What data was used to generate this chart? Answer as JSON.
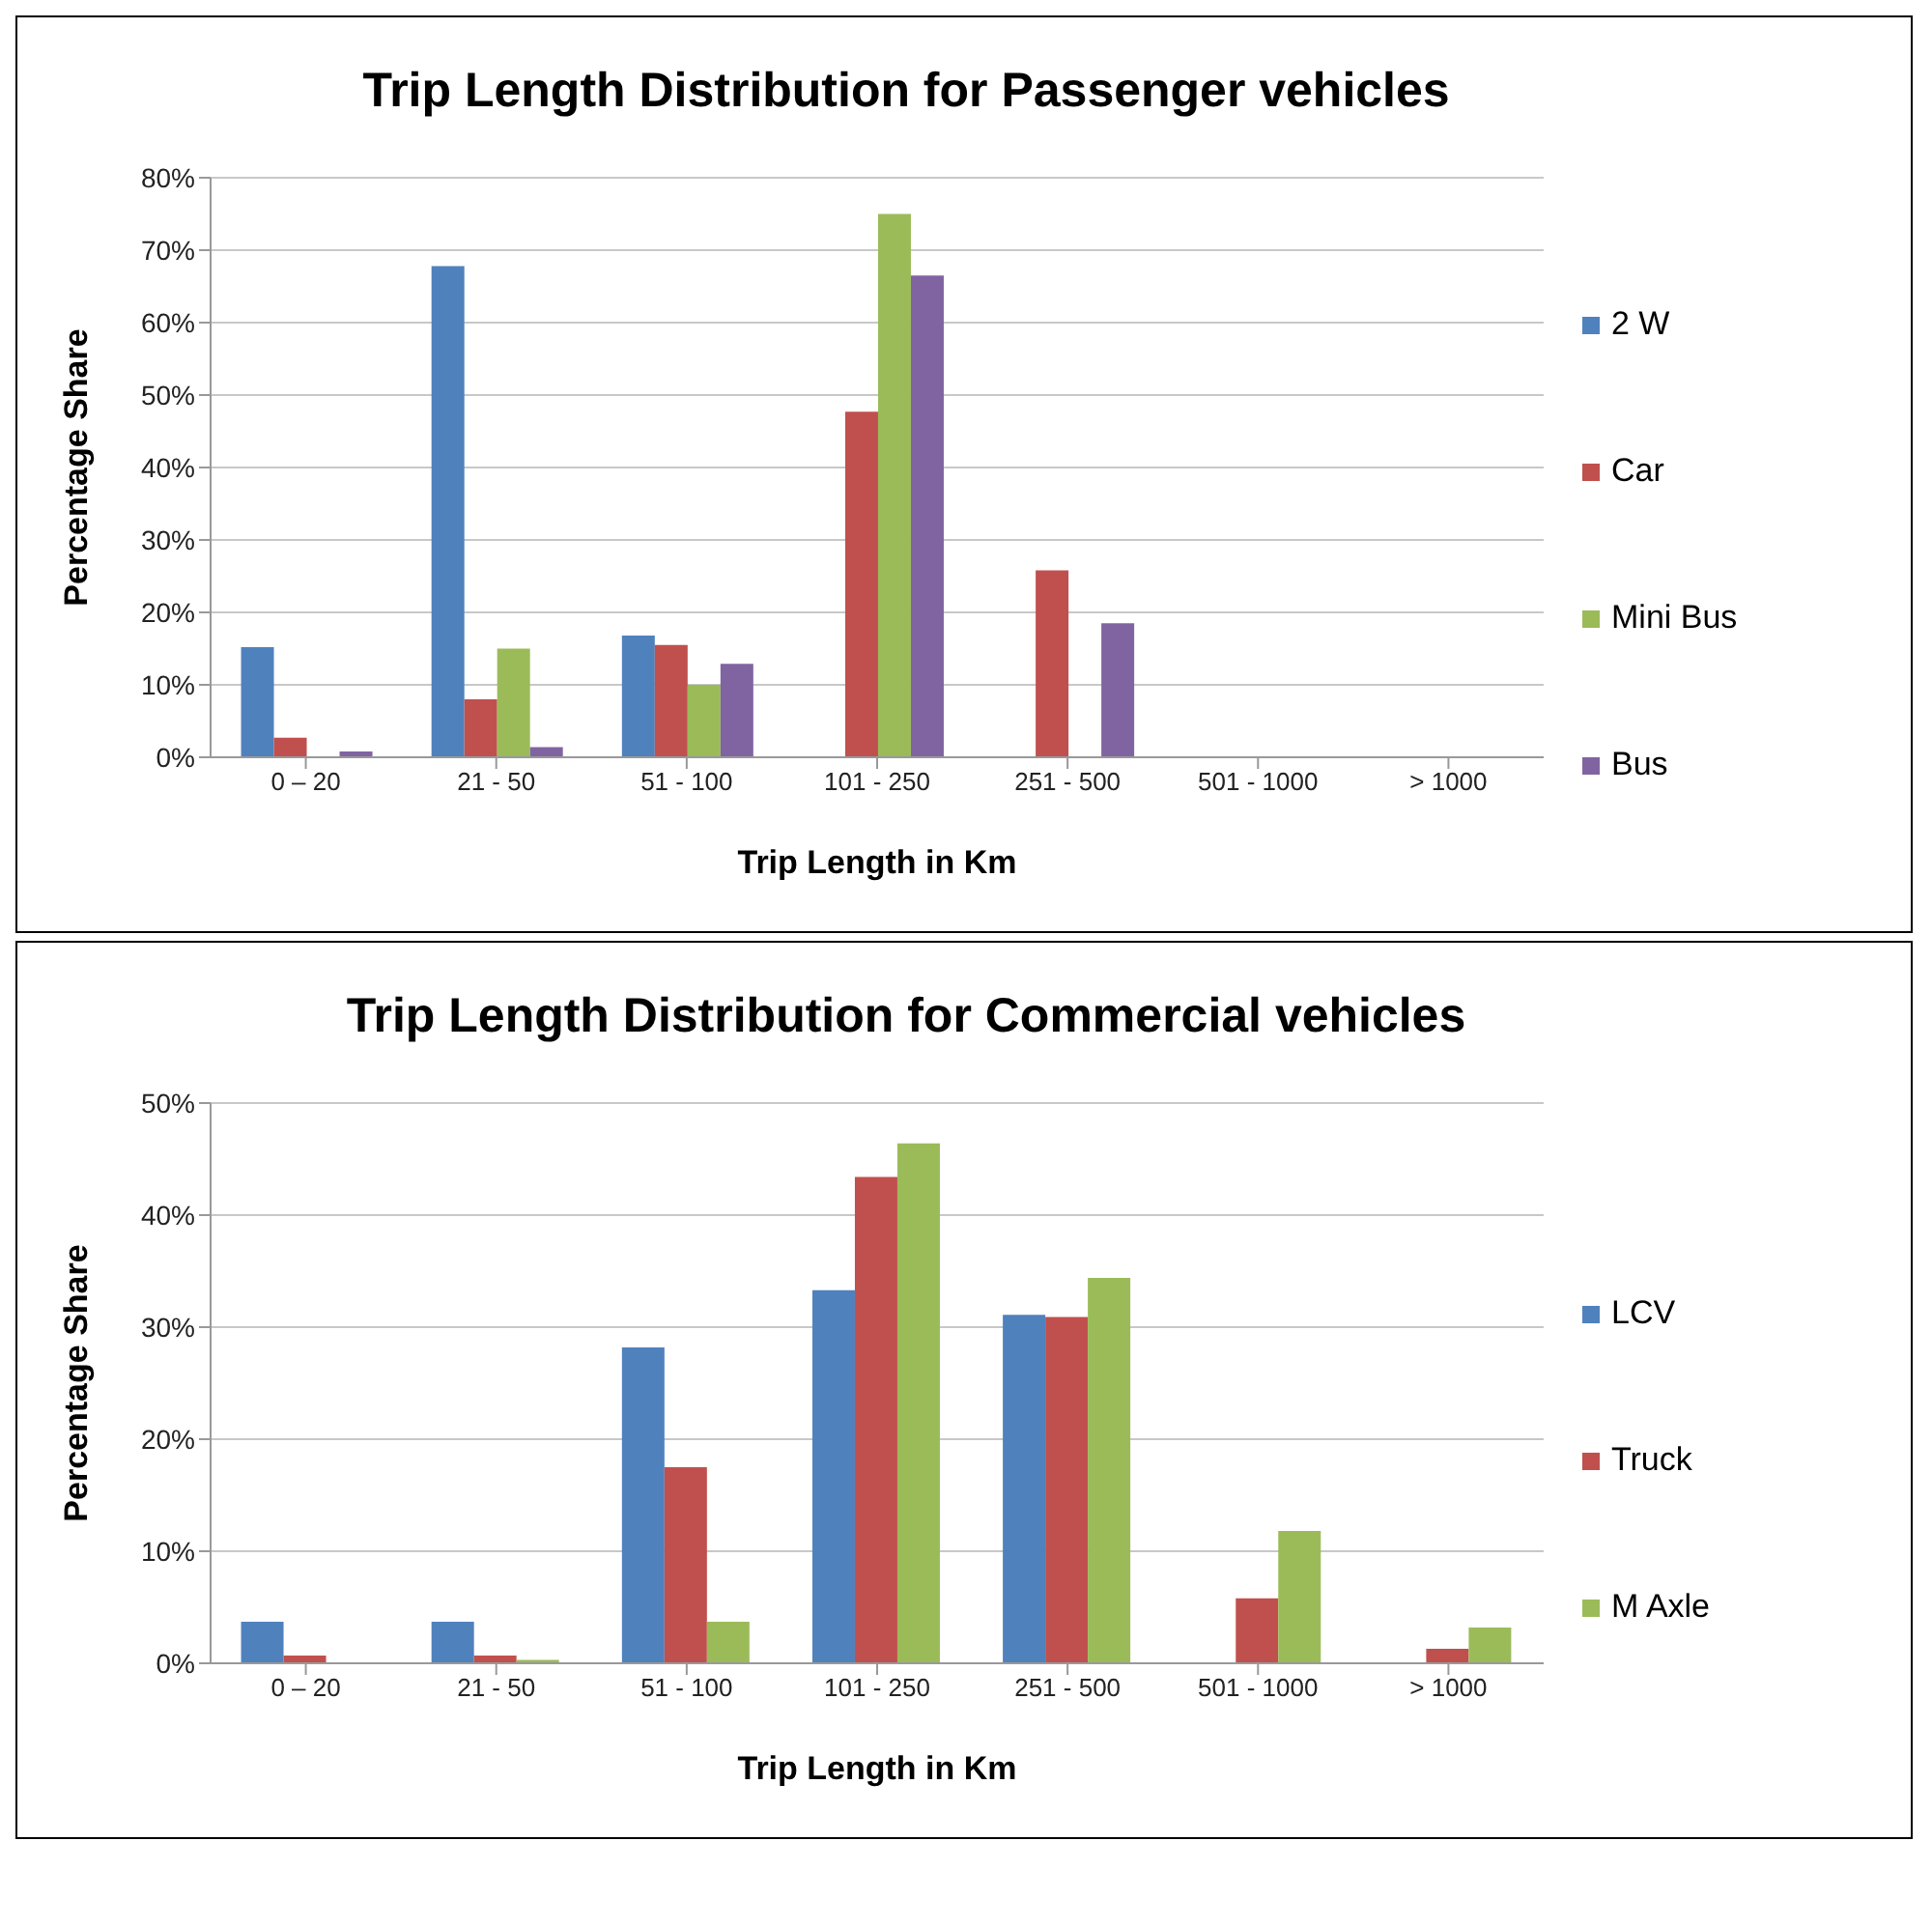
{
  "chart_data": [
    {
      "type": "bar",
      "title": "Trip Length Distribution for Passenger vehicles",
      "xlabel": "Trip Length in Km",
      "ylabel": "Percentage Share",
      "categories": [
        "0 – 20",
        "21 - 50",
        "51 - 100",
        "101 - 250",
        "251 - 500",
        "501 - 1000",
        "> 1000"
      ],
      "series": [
        {
          "name": "2 W",
          "color": "#4f81bd",
          "values": [
            15.2,
            67.8,
            16.8,
            0,
            0,
            0,
            0
          ]
        },
        {
          "name": "Car",
          "color": "#c0504d",
          "values": [
            2.7,
            8,
            15.5,
            47.7,
            25.8,
            0,
            0
          ]
        },
        {
          "name": "Mini Bus",
          "color": "#9bbb59",
          "values": [
            0,
            15,
            10,
            75,
            0,
            0,
            0
          ]
        },
        {
          "name": "Bus",
          "color": "#8064a2",
          "values": [
            0.8,
            1.4,
            12.9,
            66.5,
            18.5,
            0,
            0
          ]
        }
      ],
      "ylim": [
        0,
        80
      ],
      "yticks": [
        {
          "value": 0,
          "label": "0%"
        },
        {
          "value": 10,
          "label": "10%"
        },
        {
          "value": 20,
          "label": "20%"
        },
        {
          "value": 30,
          "label": "30%"
        },
        {
          "value": 40,
          "label": "40%"
        },
        {
          "value": 50,
          "label": "50%"
        },
        {
          "value": 60,
          "label": "60%"
        },
        {
          "value": 70,
          "label": "70%"
        },
        {
          "value": 80,
          "label": "80%"
        }
      ],
      "grid": "y",
      "legend": "right"
    },
    {
      "type": "bar",
      "title": "Trip Length Distribution for Commercial vehicles",
      "xlabel": "Trip Length in Km",
      "ylabel": "Percentage Share",
      "categories": [
        "0 – 20",
        "21 - 50",
        "51 - 100",
        "101 - 250",
        "251 - 500",
        "501 - 1000",
        "> 1000"
      ],
      "series": [
        {
          "name": "LCV",
          "color": "#4f81bd",
          "values": [
            3.7,
            3.7,
            28.2,
            33.3,
            31.1,
            0,
            0
          ]
        },
        {
          "name": "Truck",
          "color": "#c0504d",
          "values": [
            0.7,
            0.7,
            17.5,
            43.4,
            30.9,
            5.8,
            1.3
          ]
        },
        {
          "name": "M Axle",
          "color": "#9bbb59",
          "values": [
            0,
            0.3,
            3.7,
            46.4,
            34.4,
            11.8,
            3.2
          ]
        }
      ],
      "ylim": [
        0,
        50
      ],
      "yticks": [
        {
          "value": 0,
          "label": "0%"
        },
        {
          "value": 10,
          "label": "10%"
        },
        {
          "value": 20,
          "label": "20%"
        },
        {
          "value": 30,
          "label": "30%"
        },
        {
          "value": 40,
          "label": "40%"
        },
        {
          "value": 50,
          "label": "50%"
        }
      ],
      "grid": "y",
      "legend": "right"
    }
  ]
}
